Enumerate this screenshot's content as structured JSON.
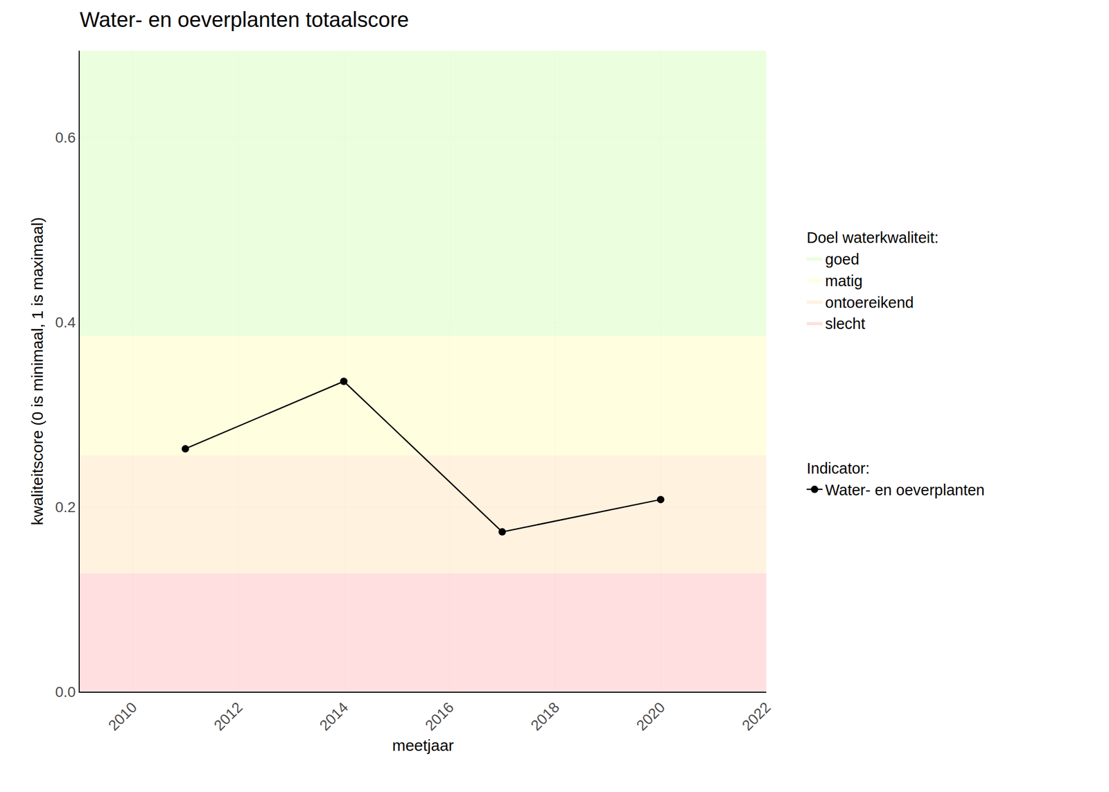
{
  "chart_data": {
    "type": "line",
    "title": "Water- en oeverplanten totaalscore",
    "x_label": "meetjaar",
    "y_label": "kwaliteitscore (0 is minimaal, 1 is maximaal)",
    "x": [
      2011,
      2014,
      2017,
      2020
    ],
    "series": [
      {
        "name": "Water- en oeverplanten",
        "color": "#000000",
        "marker": "circle",
        "line_style": "solid",
        "values": [
          0.263,
          0.336,
          0.173,
          0.208
        ]
      }
    ],
    "series_legend_title": "Indicator:",
    "bands_legend_title": "Doel waterkwaliteit:",
    "bands": [
      {
        "name": "goed",
        "from": 0.385,
        "to": 0.694,
        "color": "#E8FFD8"
      },
      {
        "name": "matig",
        "from": 0.256,
        "to": 0.385,
        "color": "#FFFFD9"
      },
      {
        "name": "ontoereikend",
        "from": 0.128,
        "to": 0.256,
        "color": "#FFF0D9"
      },
      {
        "name": "slecht",
        "from": 0,
        "to": 0.128,
        "color": "#FFD9D9"
      }
    ],
    "xlim": [
      2009,
      2022
    ],
    "xticks": [
      2010,
      2012,
      2014,
      2016,
      2018,
      2020,
      2022
    ],
    "ylim": [
      0,
      0.694
    ],
    "yticks": [
      {
        "value": 0,
        "label": "0.0"
      },
      0.2,
      0.4,
      0.6
    ],
    "grid": true,
    "legend": "right"
  }
}
